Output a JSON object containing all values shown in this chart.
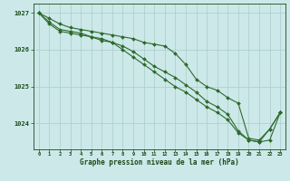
{
  "x": [
    0,
    1,
    2,
    3,
    4,
    5,
    6,
    7,
    8,
    9,
    10,
    11,
    12,
    13,
    14,
    15,
    16,
    17,
    18,
    19,
    20,
    21,
    22,
    23
  ],
  "line1": [
    1027.0,
    1026.85,
    1026.7,
    1026.6,
    1026.55,
    1026.5,
    1026.45,
    1026.4,
    1026.35,
    1026.3,
    1026.2,
    1026.15,
    1026.1,
    1025.9,
    1025.6,
    1025.2,
    1025.0,
    1024.9,
    1024.7,
    1024.55,
    1023.6,
    1023.55,
    1023.85,
    1024.3
  ],
  "line2": [
    1027.0,
    1026.75,
    1026.55,
    1026.5,
    1026.45,
    1026.35,
    1026.3,
    1026.2,
    1026.1,
    1025.95,
    1025.75,
    1025.55,
    1025.4,
    1025.25,
    1025.05,
    1024.85,
    1024.6,
    1024.45,
    1024.25,
    1023.8,
    1023.55,
    1023.5,
    1023.85,
    1024.3
  ],
  "line3": [
    1027.0,
    1026.7,
    1026.5,
    1026.45,
    1026.4,
    1026.35,
    1026.25,
    1026.2,
    1026.0,
    1025.8,
    1025.6,
    1025.4,
    1025.2,
    1025.0,
    1024.85,
    1024.65,
    1024.45,
    1024.3,
    1024.1,
    1023.75,
    1023.55,
    1023.5,
    1023.55,
    1024.3
  ],
  "ylim": [
    1023.3,
    1027.25
  ],
  "yticks": [
    1024,
    1025,
    1026,
    1027
  ],
  "xticks": [
    0,
    1,
    2,
    3,
    4,
    5,
    6,
    7,
    8,
    9,
    10,
    11,
    12,
    13,
    14,
    15,
    16,
    17,
    18,
    19,
    20,
    21,
    22,
    23
  ],
  "line_color": "#2d6a2d",
  "bg_color": "#cce8e8",
  "grid_color": "#aacccc",
  "xlabel": "Graphe pression niveau de la mer (hPa)",
  "xlabel_color": "#1a4a1a",
  "tick_color": "#1a4a1a",
  "marker": "D",
  "marker_size": 2.0,
  "linewidth": 0.8
}
